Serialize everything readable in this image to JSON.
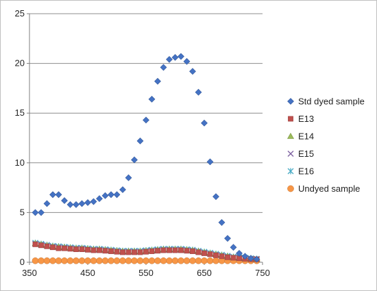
{
  "chart_data": {
    "type": "scatter",
    "title": "",
    "xlabel": "",
    "ylabel": "",
    "xlim": [
      350,
      750
    ],
    "ylim": [
      0,
      25
    ],
    "xticks": [
      350,
      450,
      550,
      650,
      750
    ],
    "yticks": [
      0,
      5,
      10,
      15,
      20,
      25
    ],
    "grid": "horizontal",
    "legend_position": "right",
    "series": [
      {
        "name": "Std dyed sample",
        "marker": "diamond",
        "color": "#4472C4",
        "x": [
          360,
          370,
          380,
          390,
          400,
          410,
          420,
          430,
          440,
          450,
          460,
          470,
          480,
          490,
          500,
          510,
          520,
          530,
          540,
          550,
          560,
          570,
          580,
          590,
          600,
          610,
          620,
          630,
          640,
          650,
          660,
          670,
          680,
          690,
          700,
          710,
          720,
          730,
          740
        ],
        "y": [
          5.0,
          5.0,
          5.9,
          6.8,
          6.8,
          6.2,
          5.8,
          5.8,
          5.9,
          6.0,
          6.1,
          6.4,
          6.7,
          6.8,
          6.8,
          7.3,
          8.5,
          10.3,
          12.2,
          14.3,
          16.4,
          18.2,
          19.6,
          20.4,
          20.6,
          20.7,
          20.2,
          19.2,
          17.1,
          14.0,
          10.1,
          6.6,
          4.0,
          2.4,
          1.5,
          0.9,
          0.6,
          0.4,
          0.3
        ]
      },
      {
        "name": "E13",
        "marker": "square",
        "color": "#C0504D",
        "x": [
          360,
          370,
          380,
          390,
          400,
          410,
          420,
          430,
          440,
          450,
          460,
          470,
          480,
          490,
          500,
          510,
          520,
          530,
          540,
          550,
          560,
          570,
          580,
          590,
          600,
          610,
          620,
          630,
          640,
          650,
          660,
          670,
          680,
          690,
          700,
          710,
          720,
          730,
          740
        ],
        "y": [
          1.8,
          1.7,
          1.6,
          1.5,
          1.4,
          1.4,
          1.35,
          1.3,
          1.3,
          1.25,
          1.2,
          1.2,
          1.15,
          1.1,
          1.05,
          1.0,
          1.0,
          1.0,
          1.0,
          1.05,
          1.1,
          1.15,
          1.2,
          1.2,
          1.2,
          1.2,
          1.15,
          1.1,
          1.0,
          0.9,
          0.8,
          0.7,
          0.6,
          0.5,
          0.45,
          0.4,
          0.35,
          0.3,
          0.3
        ]
      },
      {
        "name": "E14",
        "marker": "triangle",
        "color": "#9BBB59",
        "x": [
          360,
          370,
          380,
          390,
          400,
          410,
          420,
          430,
          440,
          450,
          460,
          470,
          480,
          490,
          500,
          510,
          520,
          530,
          540,
          550,
          560,
          570,
          580,
          590,
          600,
          610,
          620,
          630,
          640,
          650,
          660,
          670,
          680,
          690,
          700,
          710,
          720,
          730,
          740
        ],
        "y": [
          1.9,
          1.8,
          1.7,
          1.6,
          1.55,
          1.5,
          1.45,
          1.4,
          1.4,
          1.35,
          1.3,
          1.3,
          1.25,
          1.2,
          1.15,
          1.1,
          1.1,
          1.1,
          1.1,
          1.15,
          1.2,
          1.25,
          1.3,
          1.3,
          1.3,
          1.3,
          1.25,
          1.2,
          1.1,
          1.0,
          0.9,
          0.8,
          0.7,
          0.6,
          0.5,
          0.45,
          0.4,
          0.35,
          0.3
        ]
      },
      {
        "name": "E15",
        "marker": "x",
        "color": "#8064A2",
        "x": [
          360,
          370,
          380,
          390,
          400,
          410,
          420,
          430,
          440,
          450,
          460,
          470,
          480,
          490,
          500,
          510,
          520,
          530,
          540,
          550,
          560,
          570,
          580,
          590,
          600,
          610,
          620,
          630,
          640,
          650,
          660,
          670,
          680,
          690,
          700,
          710,
          720,
          730,
          740
        ],
        "y": [
          1.85,
          1.75,
          1.65,
          1.55,
          1.5,
          1.45,
          1.4,
          1.35,
          1.35,
          1.3,
          1.25,
          1.25,
          1.2,
          1.15,
          1.1,
          1.05,
          1.05,
          1.05,
          1.05,
          1.1,
          1.15,
          1.2,
          1.25,
          1.25,
          1.25,
          1.25,
          1.2,
          1.15,
          1.05,
          0.95,
          0.85,
          0.75,
          0.65,
          0.55,
          0.48,
          0.42,
          0.38,
          0.33,
          0.3
        ]
      },
      {
        "name": "E16",
        "marker": "asterisk",
        "color": "#4BACC6",
        "x": [
          360,
          370,
          380,
          390,
          400,
          410,
          420,
          430,
          440,
          450,
          460,
          470,
          480,
          490,
          500,
          510,
          520,
          530,
          540,
          550,
          560,
          570,
          580,
          590,
          600,
          610,
          620,
          630,
          640,
          650,
          660,
          670,
          680,
          690,
          700,
          710,
          720,
          730,
          740
        ],
        "y": [
          1.95,
          1.85,
          1.75,
          1.65,
          1.6,
          1.55,
          1.5,
          1.45,
          1.45,
          1.4,
          1.35,
          1.35,
          1.3,
          1.25,
          1.2,
          1.15,
          1.15,
          1.15,
          1.15,
          1.2,
          1.25,
          1.3,
          1.35,
          1.35,
          1.35,
          1.35,
          1.3,
          1.25,
          1.15,
          1.05,
          0.95,
          0.85,
          0.75,
          0.65,
          0.55,
          0.5,
          0.45,
          0.4,
          0.35
        ]
      },
      {
        "name": "Undyed sample",
        "marker": "circle",
        "color": "#F79646",
        "x": [
          360,
          370,
          380,
          390,
          400,
          410,
          420,
          430,
          440,
          450,
          460,
          470,
          480,
          490,
          500,
          510,
          520,
          530,
          540,
          550,
          560,
          570,
          580,
          590,
          600,
          610,
          620,
          630,
          640,
          650,
          660,
          670,
          680,
          690,
          700,
          710,
          720,
          730,
          740
        ],
        "y": [
          0.15,
          0.15,
          0.15,
          0.15,
          0.15,
          0.15,
          0.15,
          0.15,
          0.15,
          0.15,
          0.15,
          0.15,
          0.15,
          0.15,
          0.15,
          0.15,
          0.15,
          0.15,
          0.15,
          0.15,
          0.15,
          0.15,
          0.15,
          0.15,
          0.15,
          0.15,
          0.15,
          0.15,
          0.15,
          0.15,
          0.15,
          0.15,
          0.15,
          0.15,
          0.15,
          0.15,
          0.15,
          0.15,
          0.15
        ]
      }
    ]
  }
}
